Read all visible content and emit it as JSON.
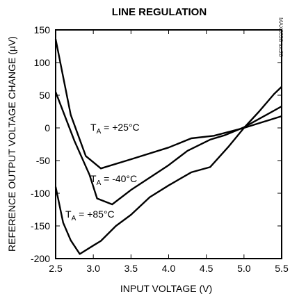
{
  "chart_data": {
    "type": "line",
    "title": "LINE REGULATION",
    "xlabel": "INPUT VOLTAGE (V)",
    "ylabel": "REFERENCE OUTPUT VOLTAGE CHANGE (µV)",
    "xlim": [
      2.5,
      5.5
    ],
    "ylim": [
      -200,
      150
    ],
    "x_ticks": [
      "2.5",
      "3.0",
      "3.5",
      "4.0",
      "4.5",
      "5.0",
      "5.5"
    ],
    "y_ticks": [
      "150",
      "100",
      "50",
      "0",
      "-50",
      "-100",
      "-150",
      "-200"
    ],
    "grid": false,
    "series": [
      {
        "label_base": "T",
        "label_sub": "A",
        "label_rest": " = +25°C",
        "points": [
          [
            2.5,
            136
          ],
          [
            2.7,
            20
          ],
          [
            2.9,
            -43
          ],
          [
            3.1,
            -62
          ],
          [
            3.5,
            -48
          ],
          [
            4.0,
            -30
          ],
          [
            4.3,
            -16
          ],
          [
            4.6,
            -12
          ],
          [
            5.0,
            0
          ],
          [
            5.5,
            18
          ]
        ]
      },
      {
        "label_base": "T",
        "label_sub": "A",
        "label_rest": " = -40°C",
        "points": [
          [
            2.5,
            55
          ],
          [
            2.75,
            -20
          ],
          [
            2.95,
            -72
          ],
          [
            3.05,
            -108
          ],
          [
            3.25,
            -117
          ],
          [
            3.5,
            -95
          ],
          [
            4.0,
            -57
          ],
          [
            4.25,
            -35
          ],
          [
            4.55,
            -18
          ],
          [
            4.75,
            -11
          ],
          [
            5.0,
            1
          ],
          [
            5.5,
            33
          ]
        ]
      },
      {
        "label_base": "T",
        "label_sub": "A",
        "label_rest": " = +85°C",
        "points": [
          [
            2.5,
            -90
          ],
          [
            2.6,
            -145
          ],
          [
            2.7,
            -172
          ],
          [
            2.82,
            -193
          ],
          [
            3.0,
            -180
          ],
          [
            3.1,
            -173
          ],
          [
            3.3,
            -150
          ],
          [
            3.5,
            -133
          ],
          [
            3.75,
            -106
          ],
          [
            4.0,
            -88
          ],
          [
            4.3,
            -68
          ],
          [
            4.55,
            -60
          ],
          [
            4.8,
            -28
          ],
          [
            5.0,
            0
          ],
          [
            5.2,
            25
          ],
          [
            5.4,
            52
          ],
          [
            5.5,
            63
          ]
        ]
      }
    ],
    "annotation": "MAX6038 toc20"
  }
}
